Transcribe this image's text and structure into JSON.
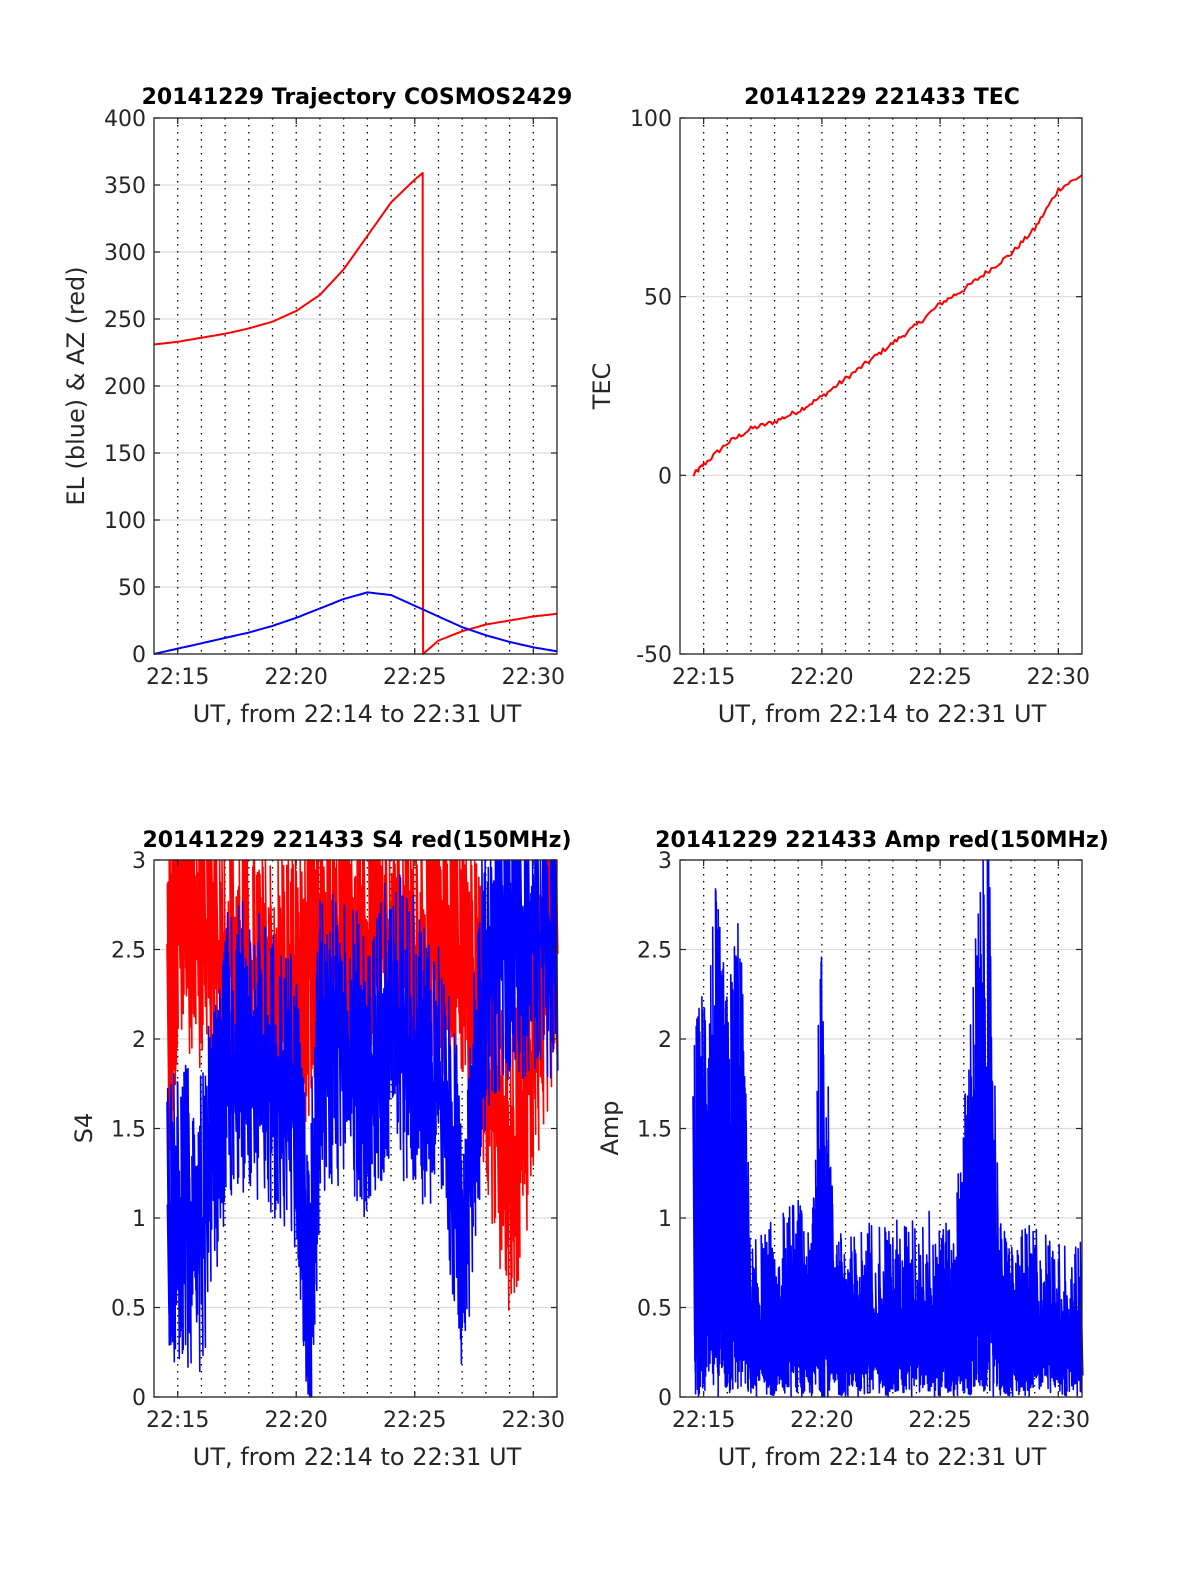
{
  "figure": {
    "background": "#ffffff"
  },
  "chart_data": [
    {
      "id": "trajectory",
      "type": "line",
      "title": "20141229 Trajectory COSMOS2429",
      "xlabel": "UT, from 22:14 to 22:31 UT",
      "ylabel": "EL (blue) & AZ (red)",
      "xlim": [
        "22:14",
        "22:31"
      ],
      "ylim": [
        0,
        400
      ],
      "xticks": [
        "22:15",
        "22:20",
        "22:25",
        "22:30"
      ],
      "yticks": [
        0,
        50,
        100,
        150,
        200,
        250,
        300,
        350,
        400
      ],
      "grid": true,
      "series": [
        {
          "color": "#ff0000",
          "x": [
            "22:14",
            "22:15",
            "22:16",
            "22:17",
            "22:18",
            "22:19",
            "22:20",
            "22:21",
            "22:22",
            "22:23",
            "22:24",
            "22:25",
            "22:25:20",
            "22:25:21",
            "22:26",
            "22:27",
            "22:28",
            "22:29",
            "22:30",
            "22:31"
          ],
          "y": [
            231,
            233,
            236,
            239,
            243,
            248,
            256,
            268,
            287,
            312,
            337,
            354,
            359,
            0,
            10,
            17,
            22,
            25,
            28,
            30
          ]
        },
        {
          "color": "#0000ff",
          "x": [
            "22:14",
            "22:15",
            "22:16",
            "22:17",
            "22:18",
            "22:19",
            "22:20",
            "22:21",
            "22:22",
            "22:23",
            "22:24",
            "22:25",
            "22:26",
            "22:27",
            "22:28",
            "22:29",
            "22:30",
            "22:31"
          ],
          "y": [
            0,
            4,
            8,
            12,
            16,
            21,
            27,
            34,
            41,
            46,
            44,
            36,
            28,
            20,
            14,
            9,
            5,
            2
          ]
        }
      ]
    },
    {
      "id": "tec",
      "type": "line",
      "title": "20141229 221433 TEC",
      "xlabel": "UT, from 22:14 to 22:31 UT",
      "ylabel": "TEC",
      "xlim": [
        "22:14",
        "22:31"
      ],
      "ylim": [
        -50,
        100
      ],
      "xticks": [
        "22:15",
        "22:20",
        "22:25",
        "22:30"
      ],
      "yticks": [
        -50,
        0,
        50,
        100
      ],
      "grid": true,
      "series": [
        {
          "color": "#ff0000",
          "x": [
            "22:14:33",
            "22:15",
            "22:16",
            "22:17",
            "22:18",
            "22:19",
            "22:20",
            "22:21",
            "22:22",
            "22:23",
            "22:24",
            "22:25",
            "22:26",
            "22:27",
            "22:28",
            "22:29",
            "22:30",
            "22:31"
          ],
          "y": [
            0,
            3,
            9,
            13,
            15,
            18,
            22,
            27,
            32,
            37,
            42,
            48,
            52,
            57,
            62,
            69,
            80,
            84
          ]
        }
      ]
    },
    {
      "id": "s4",
      "type": "line",
      "title": "20141229 221433 S4 red(150MHz)",
      "xlabel": "UT, from 22:14 to 22:31 UT",
      "ylabel": "S4",
      "xlim": [
        "22:14",
        "22:31"
      ],
      "ylim": [
        0,
        3
      ],
      "xticks": [
        "22:15",
        "22:20",
        "22:25",
        "22:30"
      ],
      "yticks": [
        0,
        0.5,
        1,
        1.5,
        2,
        2.5,
        3
      ],
      "grid": true,
      "series": [
        {
          "color": "#ff0000",
          "x": [
            "22:14:33",
            "22:15",
            "22:16",
            "22:17",
            "22:18",
            "22:19",
            "22:20",
            "22:21",
            "22:22",
            "22:23",
            "22:24",
            "22:25",
            "22:26",
            "22:27",
            "22:28",
            "22:29",
            "22:30",
            "22:31"
          ],
          "y": [
            2.0,
            2.8,
            2.6,
            2.4,
            2.3,
            2.2,
            2.3,
            2.4,
            2.5,
            2.6,
            2.5,
            2.4,
            2.6,
            2.5,
            1.9,
            1.1,
            2.0,
            2.7
          ]
        },
        {
          "color": "#0000ff",
          "x": [
            "22:14:33",
            "22:15",
            "22:16",
            "22:17",
            "22:18",
            "22:19",
            "22:20",
            "22:20:30",
            "22:21",
            "22:22",
            "22:23",
            "22:24",
            "22:25",
            "22:26",
            "22:27",
            "22:28",
            "22:29",
            "22:30",
            "22:31"
          ],
          "y": [
            0.9,
            1.0,
            0.9,
            1.8,
            1.9,
            1.7,
            1.6,
            0.5,
            1.9,
            2.0,
            1.7,
            2.1,
            1.9,
            1.7,
            0.9,
            2.4,
            2.6,
            2.5,
            2.6
          ]
        }
      ]
    },
    {
      "id": "amp",
      "type": "line",
      "title": "20141229 221433 Amp red(150MHz)",
      "xlabel": "UT, from 22:14 to 22:31 UT",
      "ylabel": "Amp",
      "xlim": [
        "22:14",
        "22:31"
      ],
      "ylim": [
        0,
        3
      ],
      "xticks": [
        "22:15",
        "22:20",
        "22:25",
        "22:30"
      ],
      "yticks": [
        0,
        0.5,
        1,
        1.5,
        2,
        2.5,
        3
      ],
      "grid": true,
      "series": [
        {
          "color": "#0000ff",
          "x": [
            "22:14:33",
            "22:15",
            "22:15:30",
            "22:16",
            "22:16:30",
            "22:17",
            "22:18",
            "22:19",
            "22:19:30",
            "22:20",
            "22:20:30",
            "22:21",
            "22:22",
            "22:23",
            "22:24",
            "22:25",
            "22:25:30",
            "22:26",
            "22:26:30",
            "22:27",
            "22:27:30",
            "22:28",
            "22:29",
            "22:30",
            "22:31"
          ],
          "y": [
            1.6,
            1.9,
            2.3,
            1.8,
            2.3,
            0.7,
            0.8,
            0.9,
            0.7,
            2.1,
            0.8,
            0.7,
            0.8,
            0.8,
            0.8,
            0.9,
            0.7,
            1.3,
            2.1,
            2.7,
            0.8,
            0.7,
            0.8,
            0.7,
            0.7
          ]
        }
      ]
    }
  ]
}
